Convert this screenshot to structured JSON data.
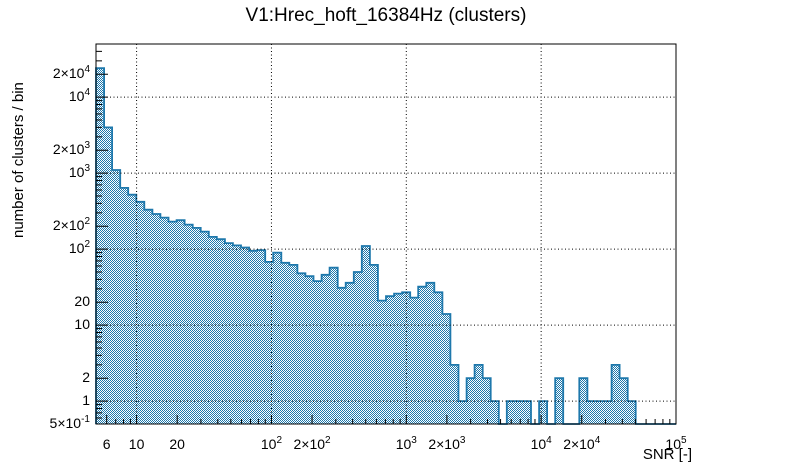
{
  "chart_data": {
    "type": "bar",
    "subtype": "histogram-log-log",
    "title": "V1:Hrec_hoft_16384Hz (clusters)",
    "xlabel": "SNR [-]",
    "ylabel": "number of clusters / bin",
    "xlim": [
      5,
      100000
    ],
    "ylim": [
      0.5,
      50000
    ],
    "xscale": "log",
    "yscale": "log",
    "grid": "dotted lines at powers of 10 on both axes",
    "legend": "none",
    "bins": {
      "min": 5,
      "max": 100000,
      "count": 72,
      "spacing": "log-uniform"
    },
    "values": [
      24000,
      4000,
      1100,
      640,
      520,
      420,
      330,
      290,
      260,
      230,
      240,
      210,
      190,
      170,
      145,
      135,
      120,
      112,
      105,
      95,
      97,
      68,
      90,
      66,
      62,
      48,
      44,
      38,
      46,
      57,
      31,
      36,
      50,
      110,
      62,
      21,
      24,
      26,
      27,
      23,
      32,
      36,
      27,
      14,
      3,
      1,
      2,
      3,
      2,
      1,
      0,
      1,
      1,
      1,
      0,
      1,
      0,
      2,
      0,
      0,
      2,
      1,
      1,
      1,
      3,
      2,
      1,
      0,
      0,
      0,
      0,
      0
    ],
    "x_ticks": [
      6,
      10,
      20,
      100,
      200,
      1000,
      2000,
      10000,
      20000,
      100000
    ],
    "x_tick_labels": [
      "6",
      "10",
      "20",
      "10^2",
      "2×10^2",
      "10^3",
      "2×10^3",
      "10^4",
      "2×10^4",
      "10^5"
    ],
    "y_ticks": [
      0.5,
      1,
      2,
      10,
      20,
      100,
      200,
      1000,
      2000,
      10000,
      20000
    ],
    "y_tick_labels": [
      "5×10^-1",
      "1",
      "2",
      "10",
      "20",
      "10^2",
      "2×10^2",
      "10^3",
      "2×10^3",
      "10^4",
      "2×10^4"
    ],
    "colors": {
      "hist_color": "#1e78ac",
      "fill_pattern": "1px checkerboard of hist_color on white",
      "axis_color": "#000000",
      "grid_color": "#000000",
      "background": "#ffffff"
    }
  }
}
